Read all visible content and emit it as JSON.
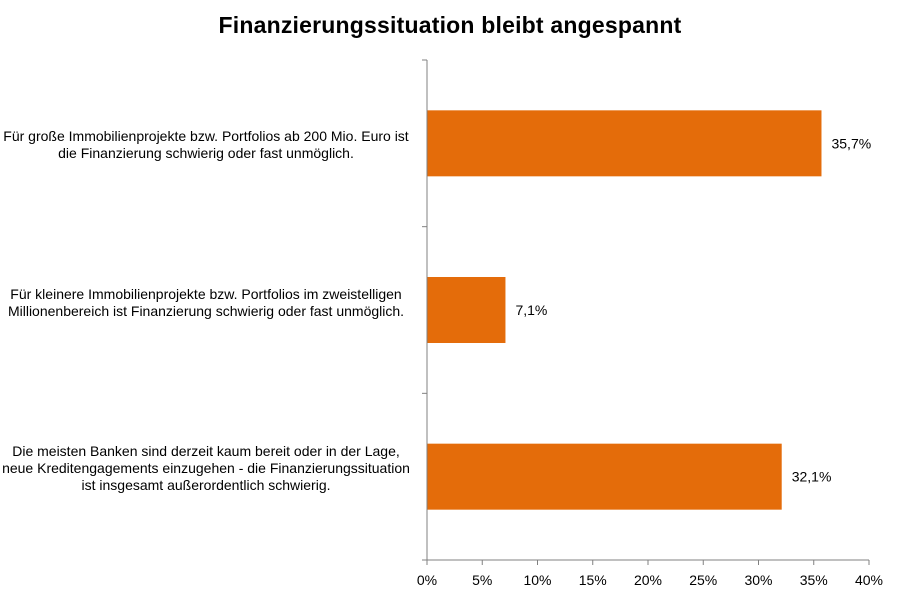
{
  "chart_data": {
    "type": "bar",
    "orientation": "horizontal",
    "title": "Finanzierungssituation bleibt angespannt",
    "categories": [
      "Für große Immobilienprojekte bzw. Portfolios ab 200 Mio. Euro ist die Finanzierung schwierig oder fast unmöglich.",
      "Für kleinere Immobilienprojekte bzw. Portfolios im zweistelligen Millionenbereich ist Finanzierung schwierig oder fast unmöglich.",
      "Die meisten Banken sind derzeit kaum bereit oder in der Lage, neue Kreditengagements einzugehen - die Finanzierungssituation ist insgesamt außerordentlich schwierig."
    ],
    "values": [
      35.7,
      7.1,
      32.1
    ],
    "value_labels": [
      "35,7%",
      "7,1%",
      "32,1%"
    ],
    "xlim": [
      0,
      40
    ],
    "x_ticks": [
      "0%",
      "5%",
      "10%",
      "15%",
      "20%",
      "25%",
      "30%",
      "35%",
      "40%"
    ],
    "xlabel": "",
    "ylabel": "",
    "grid": false,
    "bar_color": "#e46c0a"
  }
}
